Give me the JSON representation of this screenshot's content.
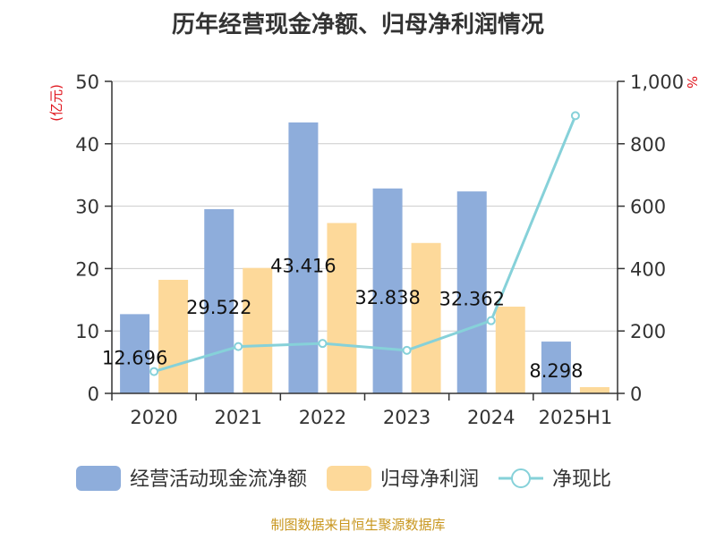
{
  "chart_data": {
    "type": "bar",
    "title": "历年经营现金净额、归母净利润情况",
    "categories": [
      "2020",
      "2021",
      "2022",
      "2023",
      "2024",
      "2025H1"
    ],
    "y_left": {
      "unit": "(亿元)",
      "range": [
        0,
        50
      ],
      "ticks": [
        "0",
        "10",
        "20",
        "30",
        "40",
        "50"
      ]
    },
    "y_right": {
      "unit": "%",
      "range": [
        0,
        1000
      ],
      "ticks": [
        "0",
        "200",
        "400",
        "600",
        "800",
        "1,000"
      ]
    },
    "series": [
      {
        "name": "经营活动现金流净额",
        "kind": "bar",
        "axis": "left",
        "color": "#8eaddb",
        "values": [
          12.696,
          29.522,
          43.416,
          32.838,
          32.362,
          8.298
        ],
        "labels": [
          "12.696",
          "29.522",
          "43.416",
          "32.838",
          "32.362",
          "8.298"
        ]
      },
      {
        "name": "归母净利润",
        "kind": "bar",
        "axis": "left",
        "color": "#fdd99a",
        "values": [
          18.2,
          20.1,
          27.3,
          24.1,
          13.9,
          1.0
        ]
      },
      {
        "name": "净现比",
        "kind": "line",
        "axis": "right",
        "color": "#86d1d9",
        "values": [
          70,
          150,
          160,
          138,
          233,
          890
        ]
      }
    ],
    "grid": true,
    "legend": "bottom"
  },
  "footer": {
    "source": "制图数据来自恒生聚源数据库"
  }
}
